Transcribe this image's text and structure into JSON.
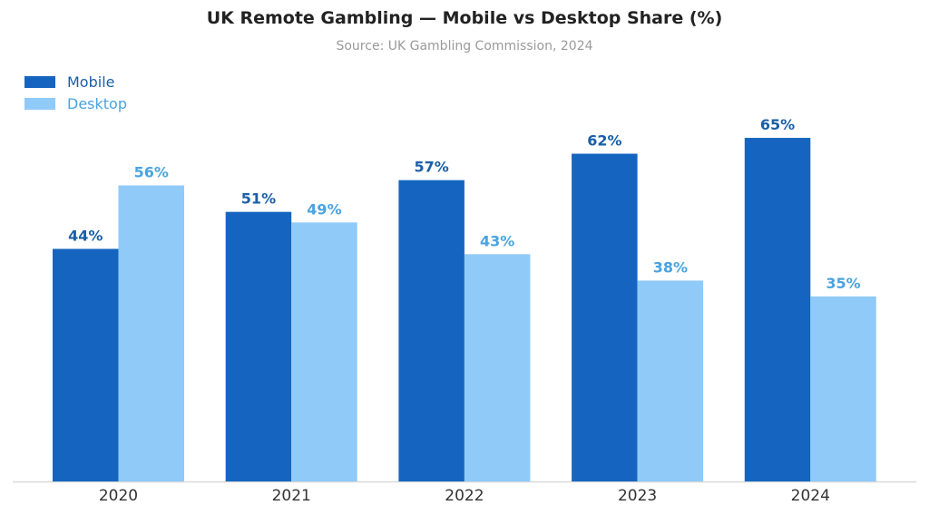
{
  "title": "UK Remote Gambling — Mobile vs Desktop Share (%)",
  "subtitle": "Source: UK Gambling Commission, 2024",
  "legend": {
    "mobile": "Mobile",
    "desktop": "Desktop"
  },
  "colors": {
    "mobile": "#1565c0",
    "desktop": "#90caf9",
    "mobile_label": "#1a5fa8",
    "desktop_label": "#4aa3df",
    "axis": "#d9d9d9"
  },
  "chart_data": {
    "type": "bar",
    "title": "UK Remote Gambling — Mobile vs Desktop Share (%)",
    "subtitle": "Source: UK Gambling Commission, 2024",
    "categories": [
      "2020",
      "2021",
      "2022",
      "2023",
      "2024"
    ],
    "series": [
      {
        "name": "Mobile",
        "values": [
          44,
          51,
          57,
          62,
          65
        ],
        "labels": [
          "44%",
          "51%",
          "57%",
          "62%",
          "65%"
        ]
      },
      {
        "name": "Desktop",
        "values": [
          56,
          49,
          43,
          38,
          35
        ],
        "labels": [
          "56%",
          "49%",
          "43%",
          "38%",
          "35%"
        ]
      }
    ],
    "xlabel": "",
    "ylabel": "",
    "ylim": [
      0,
      100
    ],
    "grid": false,
    "legend_position": "top-left"
  }
}
